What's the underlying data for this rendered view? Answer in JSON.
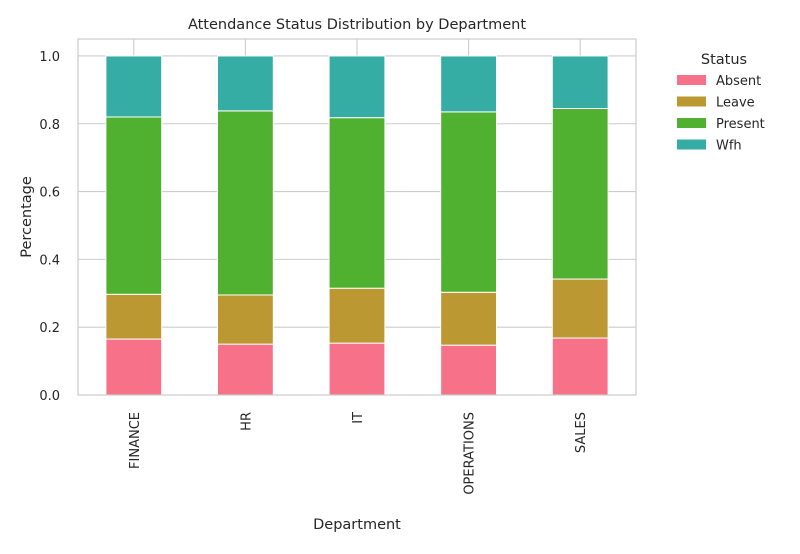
{
  "chart_data": {
    "type": "bar",
    "stacked": true,
    "title": "Attendance Status Distribution by Department",
    "xlabel": "Department",
    "ylabel": "Percentage",
    "ylim": [
      0,
      1.05
    ],
    "yticks": [
      "0.0",
      "0.2",
      "0.4",
      "0.6",
      "0.8",
      "1.0"
    ],
    "ytick_values": [
      0,
      0.2,
      0.4,
      0.6,
      0.8,
      1.0
    ],
    "categories": [
      "FINANCE",
      "HR",
      "IT",
      "OPERATIONS",
      "SALES"
    ],
    "grid": true,
    "legend": {
      "title": "Status",
      "placement": "outside-right"
    },
    "series": [
      {
        "name": "Absent",
        "color": "#f77189",
        "values": [
          0.165,
          0.15,
          0.153,
          0.147,
          0.168
        ]
      },
      {
        "name": "Leave",
        "color": "#bb9832",
        "values": [
          0.132,
          0.145,
          0.162,
          0.156,
          0.174
        ]
      },
      {
        "name": "Present",
        "color": "#50b131",
        "values": [
          0.523,
          0.543,
          0.503,
          0.532,
          0.503
        ]
      },
      {
        "name": "Wfh",
        "color": "#36ada4",
        "values": [
          0.18,
          0.162,
          0.182,
          0.165,
          0.155
        ]
      }
    ]
  }
}
